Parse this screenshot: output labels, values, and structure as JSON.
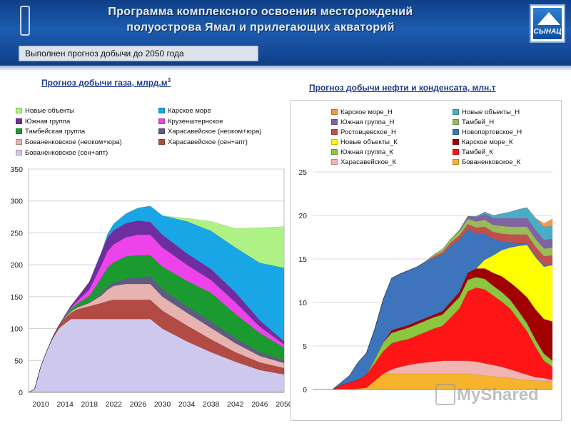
{
  "header": {
    "title_line1": "Программа комплексного освоения месторождений",
    "title_line2": "полуострова Ямал и прилегающих акваторий",
    "logo_text": "СЫНАЦ"
  },
  "banner": {
    "text": "Выполнен прогноз добычи до 2050 года"
  },
  "watermark": {
    "text": "MyShared"
  },
  "chart_data": [
    {
      "type": "area",
      "title": "Прогноз добычи газа, млрд.м",
      "title_sup": "3",
      "ylim": [
        0,
        350
      ],
      "yticks": [
        "0",
        "50",
        "100",
        "150",
        "200",
        "250",
        "300",
        "350"
      ],
      "xlim": [
        2008,
        2050
      ],
      "xticks": [
        "2010",
        "2014",
        "2018",
        "2022",
        "2026",
        "2030",
        "2034",
        "2038",
        "2042",
        "2046",
        "2050"
      ],
      "x": [
        2008,
        2009,
        2010,
        2011,
        2012,
        2013,
        2014,
        2015,
        2016,
        2018,
        2020,
        2021,
        2022,
        2024,
        2026,
        2028,
        2030,
        2034,
        2038,
        2042,
        2046,
        2050
      ],
      "series": [
        {
          "name": "Бованенковское (сен+апт)",
          "color": "#cfc8ee",
          "values": [
            0,
            5,
            40,
            65,
            85,
            100,
            108,
            115,
            115,
            115,
            115,
            115,
            115,
            115,
            115,
            115,
            100,
            80,
            63,
            48,
            35,
            28
          ]
        },
        {
          "name": "Харасавейское (сен+апт)",
          "color": "#b24b44",
          "values": [
            0,
            0,
            0,
            0,
            2,
            5,
            8,
            10,
            15,
            20,
            25,
            28,
            30,
            30,
            30,
            30,
            28,
            25,
            20,
            15,
            12,
            10
          ]
        },
        {
          "name": "Бованенковское (неоком+юра)",
          "color": "#e6b3b0",
          "values": [
            0,
            0,
            0,
            0,
            0,
            0,
            1,
            2,
            3,
            5,
            12,
            18,
            22,
            25,
            25,
            25,
            22,
            20,
            18,
            14,
            10,
            8
          ]
        },
        {
          "name": "Харасавейское (неоком+юра)",
          "color": "#5d5c81",
          "values": [
            0,
            0,
            0,
            0,
            0,
            0,
            0,
            0,
            1,
            1,
            3,
            5,
            5,
            8,
            10,
            12,
            12,
            10,
            10,
            8,
            6,
            4
          ]
        },
        {
          "name": "Тамбейская группа",
          "color": "#1b9a30",
          "values": [
            0,
            0,
            0,
            0,
            0,
            0,
            2,
            4,
            5,
            10,
            25,
            30,
            32,
            35,
            35,
            33,
            35,
            40,
            45,
            38,
            30,
            20
          ]
        },
        {
          "name": "Крузенштернское",
          "color": "#ee43ea",
          "values": [
            0,
            0,
            0,
            0,
            0,
            0,
            1,
            2,
            4,
            10,
            20,
            25,
            28,
            30,
            32,
            32,
            30,
            25,
            20,
            18,
            10,
            5
          ]
        },
        {
          "name": "Южная группа",
          "color": "#6f2ea0",
          "values": [
            0,
            0,
            0,
            0,
            0,
            0,
            1,
            3,
            5,
            12,
            20,
            22,
            22,
            22,
            22,
            20,
            20,
            18,
            17,
            16,
            10,
            5
          ]
        },
        {
          "name": "Карское море",
          "color": "#18a6e6",
          "values": [
            0,
            0,
            0,
            0,
            0,
            0,
            0,
            0,
            0,
            0,
            0,
            5,
            10,
            15,
            20,
            25,
            30,
            50,
            60,
            70,
            90,
            115
          ]
        },
        {
          "name": "Новые объекты",
          "color": "#aef286",
          "values": [
            0,
            0,
            0,
            0,
            0,
            0,
            0,
            0,
            0,
            0,
            0,
            0,
            0,
            0,
            0,
            0,
            0,
            5,
            15,
            30,
            55,
            65
          ]
        }
      ],
      "legend": [
        "Новые объекты",
        "Карское море",
        "Южная группа",
        "Крузенштернское",
        "Тамбейская группа",
        "Харасавейское (неоком+юра)",
        "Бованенковское (неоком+юра)",
        "Харасавейское (сен+апт)",
        "Бованенковское (сен+апт)"
      ]
    },
    {
      "type": "area",
      "title": "Прогноз добычи нефти и конденсата, млн.т",
      "ylim": [
        0,
        25
      ],
      "yticks": [
        "0",
        "5",
        "10",
        "15",
        "20",
        "25"
      ],
      "x": [
        0,
        1,
        2,
        3,
        4,
        5,
        6,
        7,
        8,
        9,
        10,
        11,
        12,
        13,
        14,
        15,
        16,
        17,
        18,
        19,
        20,
        21,
        22,
        23,
        24,
        25,
        26,
        27
      ],
      "series": [
        {
          "name": "Бованенковское_К",
          "color": "#f7b32b",
          "values": [
            0,
            0,
            0,
            0,
            0.1,
            0.2,
            1.0,
            1.8,
            1.8,
            1.8,
            1.8,
            1.8,
            1.8,
            1.8,
            1.8,
            1.8,
            1.8,
            1.8,
            1.7,
            1.6,
            1.5,
            1.4,
            1.3,
            1.2,
            1.1,
            1.0,
            1.0,
            0.9
          ]
        },
        {
          "name": "Харасавейское_К",
          "color": "#f2b4b0",
          "values": [
            0,
            0,
            0,
            0,
            0,
            0,
            0,
            0,
            0.5,
            0.8,
            1.0,
            1.2,
            1.3,
            1.4,
            1.5,
            1.5,
            1.5,
            1.5,
            1.5,
            1.4,
            1.3,
            1.2,
            1.0,
            0.8,
            0.6,
            0.4,
            0.3,
            0.2
          ]
        },
        {
          "name": "Тамбей_К",
          "color": "#ff1515",
          "values": [
            0,
            0,
            0.5,
            0.8,
            1.0,
            1.5,
            2.0,
            2.6,
            3.0,
            3.0,
            3.0,
            3.2,
            3.5,
            3.8,
            4.0,
            5.0,
            6.0,
            8.0,
            8.5,
            8.5,
            8.0,
            7.5,
            7.0,
            6.0,
            5.0,
            3.5,
            2.0,
            1.5
          ]
        },
        {
          "name": "Южная группа_К",
          "color": "#8cc63e",
          "values": [
            0,
            0,
            0,
            0,
            0,
            0,
            0.5,
            1.0,
            1.2,
            1.2,
            1.3,
            1.3,
            1.3,
            1.3,
            1.3,
            1.3,
            1.3,
            1.3,
            1.2,
            1.2,
            1.1,
            1.1,
            1.0,
            1.0,
            0.9,
            0.8,
            0.8,
            0.7
          ]
        },
        {
          "name": "Карское море_К",
          "color": "#a00000",
          "values": [
            0,
            0,
            0,
            0,
            0,
            0,
            0,
            0,
            0.3,
            0.3,
            0.3,
            0.3,
            0.3,
            0.3,
            0.4,
            0.5,
            0.6,
            0.8,
            1.0,
            1.2,
            1.5,
            1.8,
            2.0,
            2.5,
            3.0,
            3.5,
            4.0,
            4.5
          ]
        },
        {
          "name": "Новые объекты_К",
          "color": "#ffff00",
          "values": [
            0,
            0,
            0,
            0,
            0,
            0,
            0,
            0,
            0,
            0,
            0,
            0,
            0,
            0,
            0,
            0,
            0,
            0,
            0,
            1.0,
            2.0,
            3.0,
            4.0,
            5.0,
            6.0,
            6.0,
            6.0,
            6.5
          ]
        },
        {
          "name": "Новопортовское_Н",
          "color": "#3d74bb",
          "values": [
            0,
            0,
            0.3,
            0.8,
            2.0,
            2.5,
            3.5,
            5.0,
            6.0,
            6.2,
            6.3,
            6.3,
            6.5,
            6.5,
            6.5,
            6.4,
            6.0,
            5.0,
            4.0,
            3.0,
            1.9,
            1.0,
            0.6,
            0.3,
            0.2,
            0.2,
            0.2,
            0.1
          ]
        },
        {
          "name": "Ростовцевское_Н",
          "color": "#c0504d",
          "values": [
            0,
            0,
            0,
            0,
            0,
            0,
            0,
            0,
            0,
            0,
            0,
            0,
            0,
            0.2,
            0.3,
            0.4,
            0.5,
            0.6,
            0.7,
            0.8,
            0.8,
            0.9,
            0.9,
            1.0,
            1.0,
            1.0,
            1.0,
            1.0
          ]
        },
        {
          "name": "Тамбей_Н",
          "color": "#9bbb59",
          "values": [
            0,
            0,
            0,
            0,
            0,
            0,
            0,
            0,
            0,
            0,
            0,
            0,
            0,
            0.2,
            0.3,
            0.4,
            0.5,
            0.6,
            0.7,
            0.8,
            0.8,
            0.9,
            0.9,
            0.9,
            0.9,
            0.9,
            0.9,
            0.9
          ]
        },
        {
          "name": "Южная группа_Н",
          "color": "#8064a2",
          "values": [
            0,
            0,
            0,
            0,
            0,
            0,
            0,
            0,
            0,
            0,
            0,
            0,
            0,
            0,
            0,
            0,
            0.1,
            0.3,
            0.5,
            0.7,
            0.8,
            0.9,
            1.0,
            1.0,
            1.0,
            1.0,
            1.0,
            1.0
          ]
        },
        {
          "name": "Новые объекты_Н",
          "color": "#4bacc6",
          "values": [
            0,
            0,
            0,
            0,
            0,
            0,
            0,
            0,
            0,
            0,
            0,
            0,
            0,
            0,
            0,
            0,
            0,
            0,
            0.1,
            0.2,
            0.3,
            0.5,
            0.7,
            1.0,
            1.2,
            1.4,
            1.5,
            1.5
          ]
        },
        {
          "name": "Карское море_Н",
          "color": "#f79646",
          "values": [
            0,
            0,
            0,
            0,
            0,
            0,
            0,
            0,
            0,
            0,
            0,
            0,
            0,
            0,
            0,
            0,
            0,
            0,
            0,
            0,
            0,
            0,
            0,
            0,
            0,
            0,
            0.4,
            0.8
          ]
        }
      ],
      "legend": [
        "Карское море_Н",
        "Новые объекты_Н",
        "Южная группа_Н",
        "Тамбей_Н",
        "Ростовцевское_Н",
        "Новопортовское_Н",
        "Новые объекты_К",
        "Карское море_К",
        "Южная группа_К",
        "Тамбей_К",
        "Харасавейское_К",
        "Бованенковское_К"
      ]
    }
  ]
}
